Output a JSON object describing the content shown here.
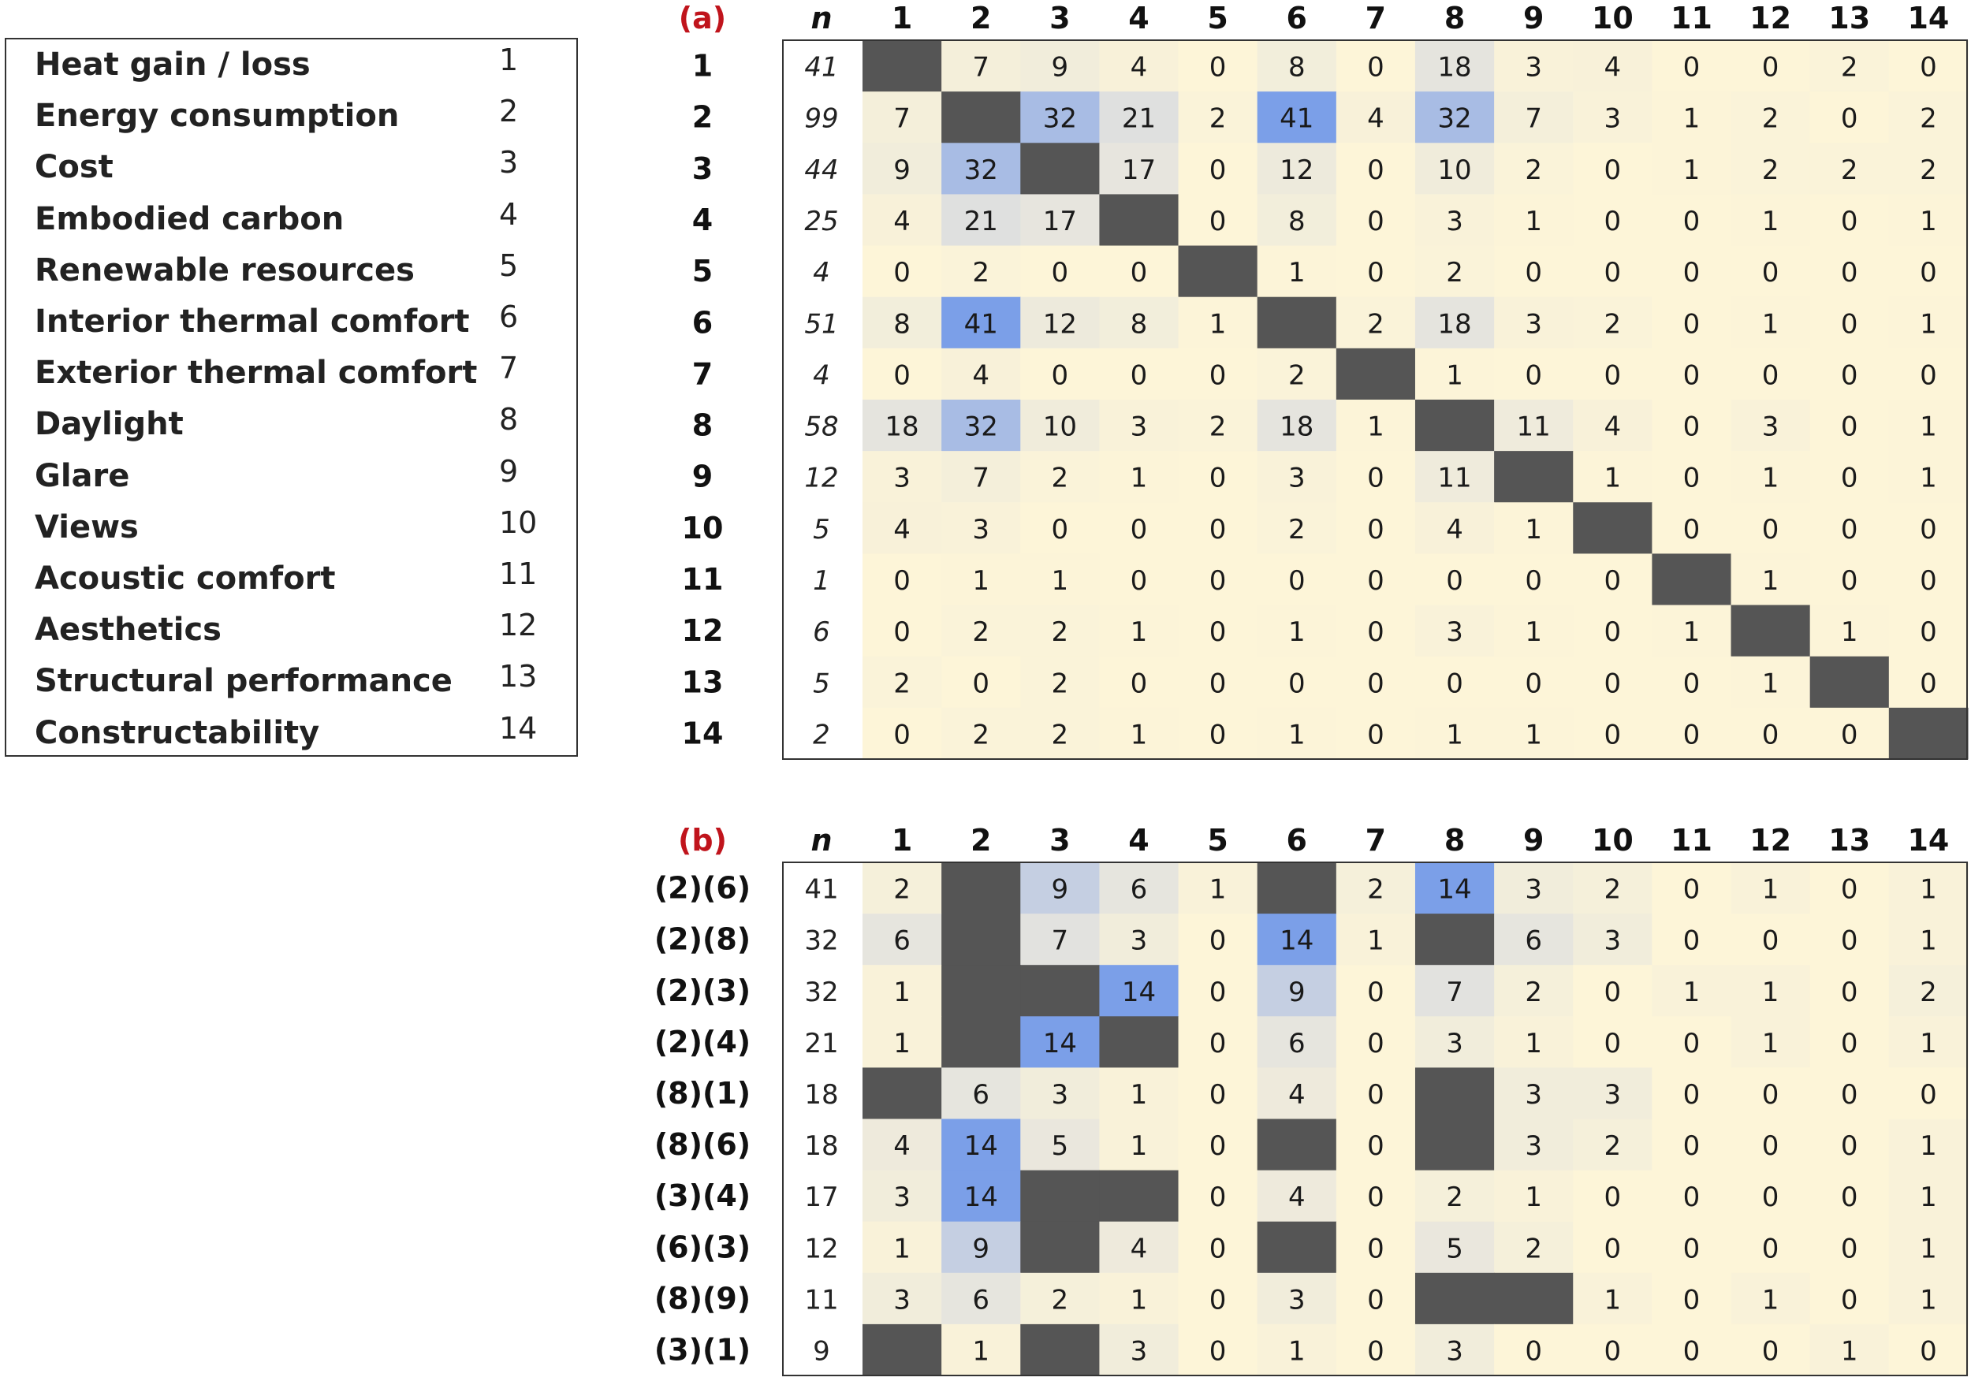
{
  "legend": {
    "items": [
      {
        "label": "Heat gain / loss",
        "num": "1"
      },
      {
        "label": "Energy consumption",
        "num": "2"
      },
      {
        "label": "Cost",
        "num": "3"
      },
      {
        "label": "Embodied carbon",
        "num": "4"
      },
      {
        "label": "Renewable resources",
        "num": "5"
      },
      {
        "label": "Interior thermal comfort",
        "num": "6"
      },
      {
        "label": "Exterior thermal comfort",
        "num": "7"
      },
      {
        "label": "Daylight",
        "num": "8"
      },
      {
        "label": "Glare",
        "num": "9"
      },
      {
        "label": "Views",
        "num": "10"
      },
      {
        "label": "Acoustic comfort",
        "num": "11"
      },
      {
        "label": "Aesthetics",
        "num": "12"
      },
      {
        "label": "Structural performance",
        "num": "13"
      },
      {
        "label": "Constructability",
        "num": "14"
      }
    ]
  },
  "colors": {
    "low": "#fdf5d8",
    "mid": "#e2e2df",
    "high": "#7b9fe8",
    "diagonal": "#555555",
    "panel_label": "#c0141c"
  },
  "chart_data": [
    {
      "type": "heatmap",
      "panel_label": "(a)",
      "n_header": "n",
      "columns": [
        "1",
        "2",
        "3",
        "4",
        "5",
        "6",
        "7",
        "8",
        "9",
        "10",
        "11",
        "12",
        "13",
        "14"
      ],
      "rows": [
        "1",
        "2",
        "3",
        "4",
        "5",
        "6",
        "7",
        "8",
        "9",
        "10",
        "11",
        "12",
        "13",
        "14"
      ],
      "n": [
        "41",
        "99",
        "44",
        "25",
        "4",
        "51",
        "4",
        "58",
        "12",
        "5",
        "1",
        "6",
        "5",
        "2"
      ],
      "values": [
        [
          null,
          7,
          9,
          4,
          0,
          8,
          0,
          18,
          3,
          4,
          0,
          0,
          2,
          0
        ],
        [
          7,
          null,
          32,
          21,
          2,
          41,
          4,
          32,
          7,
          3,
          1,
          2,
          0,
          2
        ],
        [
          9,
          32,
          null,
          17,
          0,
          12,
          0,
          10,
          2,
          0,
          1,
          2,
          2,
          2
        ],
        [
          4,
          21,
          17,
          null,
          0,
          8,
          0,
          3,
          1,
          0,
          0,
          1,
          0,
          1
        ],
        [
          0,
          2,
          0,
          0,
          null,
          1,
          0,
          2,
          0,
          0,
          0,
          0,
          0,
          0
        ],
        [
          8,
          41,
          12,
          8,
          1,
          null,
          2,
          18,
          3,
          2,
          0,
          1,
          0,
          1
        ],
        [
          0,
          4,
          0,
          0,
          0,
          2,
          null,
          1,
          0,
          0,
          0,
          0,
          0,
          0
        ],
        [
          18,
          32,
          10,
          3,
          2,
          18,
          1,
          null,
          11,
          4,
          0,
          3,
          0,
          1
        ],
        [
          3,
          7,
          2,
          1,
          0,
          3,
          0,
          11,
          null,
          1,
          0,
          1,
          0,
          1
        ],
        [
          4,
          3,
          0,
          0,
          0,
          2,
          0,
          4,
          1,
          null,
          0,
          0,
          0,
          0
        ],
        [
          0,
          1,
          1,
          0,
          0,
          0,
          0,
          0,
          0,
          0,
          null,
          1,
          0,
          0
        ],
        [
          0,
          2,
          2,
          1,
          0,
          1,
          0,
          3,
          1,
          0,
          1,
          null,
          1,
          0
        ],
        [
          2,
          0,
          2,
          0,
          0,
          0,
          0,
          0,
          0,
          0,
          0,
          1,
          null,
          0
        ],
        [
          0,
          2,
          2,
          1,
          0,
          1,
          0,
          1,
          1,
          0,
          0,
          0,
          0,
          null
        ]
      ]
    },
    {
      "type": "heatmap",
      "panel_label": "(b)",
      "n_header": "n",
      "columns": [
        "1",
        "2",
        "3",
        "4",
        "5",
        "6",
        "7",
        "8",
        "9",
        "10",
        "11",
        "12",
        "13",
        "14"
      ],
      "rows": [
        "(2)(6)",
        "(2)(8)",
        "(2)(3)",
        "(2)(4)",
        "(8)(1)",
        "(8)(6)",
        "(3)(4)",
        "(6)(3)",
        "(8)(9)",
        "(3)(1)"
      ],
      "n": [
        "41",
        "32",
        "32",
        "21",
        "18",
        "18",
        "17",
        "12",
        "11",
        "9"
      ],
      "values": [
        [
          2,
          null,
          9,
          6,
          1,
          null,
          2,
          14,
          3,
          2,
          0,
          1,
          0,
          1
        ],
        [
          6,
          null,
          7,
          3,
          0,
          14,
          1,
          null,
          6,
          3,
          0,
          0,
          0,
          1
        ],
        [
          1,
          null,
          null,
          14,
          0,
          9,
          0,
          7,
          2,
          0,
          1,
          1,
          0,
          2
        ],
        [
          1,
          null,
          14,
          null,
          0,
          6,
          0,
          3,
          1,
          0,
          0,
          1,
          0,
          1
        ],
        [
          null,
          6,
          3,
          1,
          0,
          4,
          0,
          null,
          3,
          3,
          0,
          0,
          0,
          0
        ],
        [
          4,
          14,
          5,
          1,
          0,
          null,
          0,
          null,
          3,
          2,
          0,
          0,
          0,
          1
        ],
        [
          3,
          14,
          null,
          null,
          0,
          4,
          0,
          2,
          1,
          0,
          0,
          0,
          0,
          1
        ],
        [
          1,
          9,
          null,
          4,
          0,
          null,
          0,
          5,
          2,
          0,
          0,
          0,
          0,
          1
        ],
        [
          3,
          6,
          2,
          1,
          0,
          3,
          0,
          null,
          null,
          1,
          0,
          1,
          0,
          1
        ],
        [
          null,
          1,
          null,
          3,
          0,
          1,
          0,
          3,
          0,
          0,
          0,
          0,
          1,
          0
        ]
      ]
    }
  ]
}
